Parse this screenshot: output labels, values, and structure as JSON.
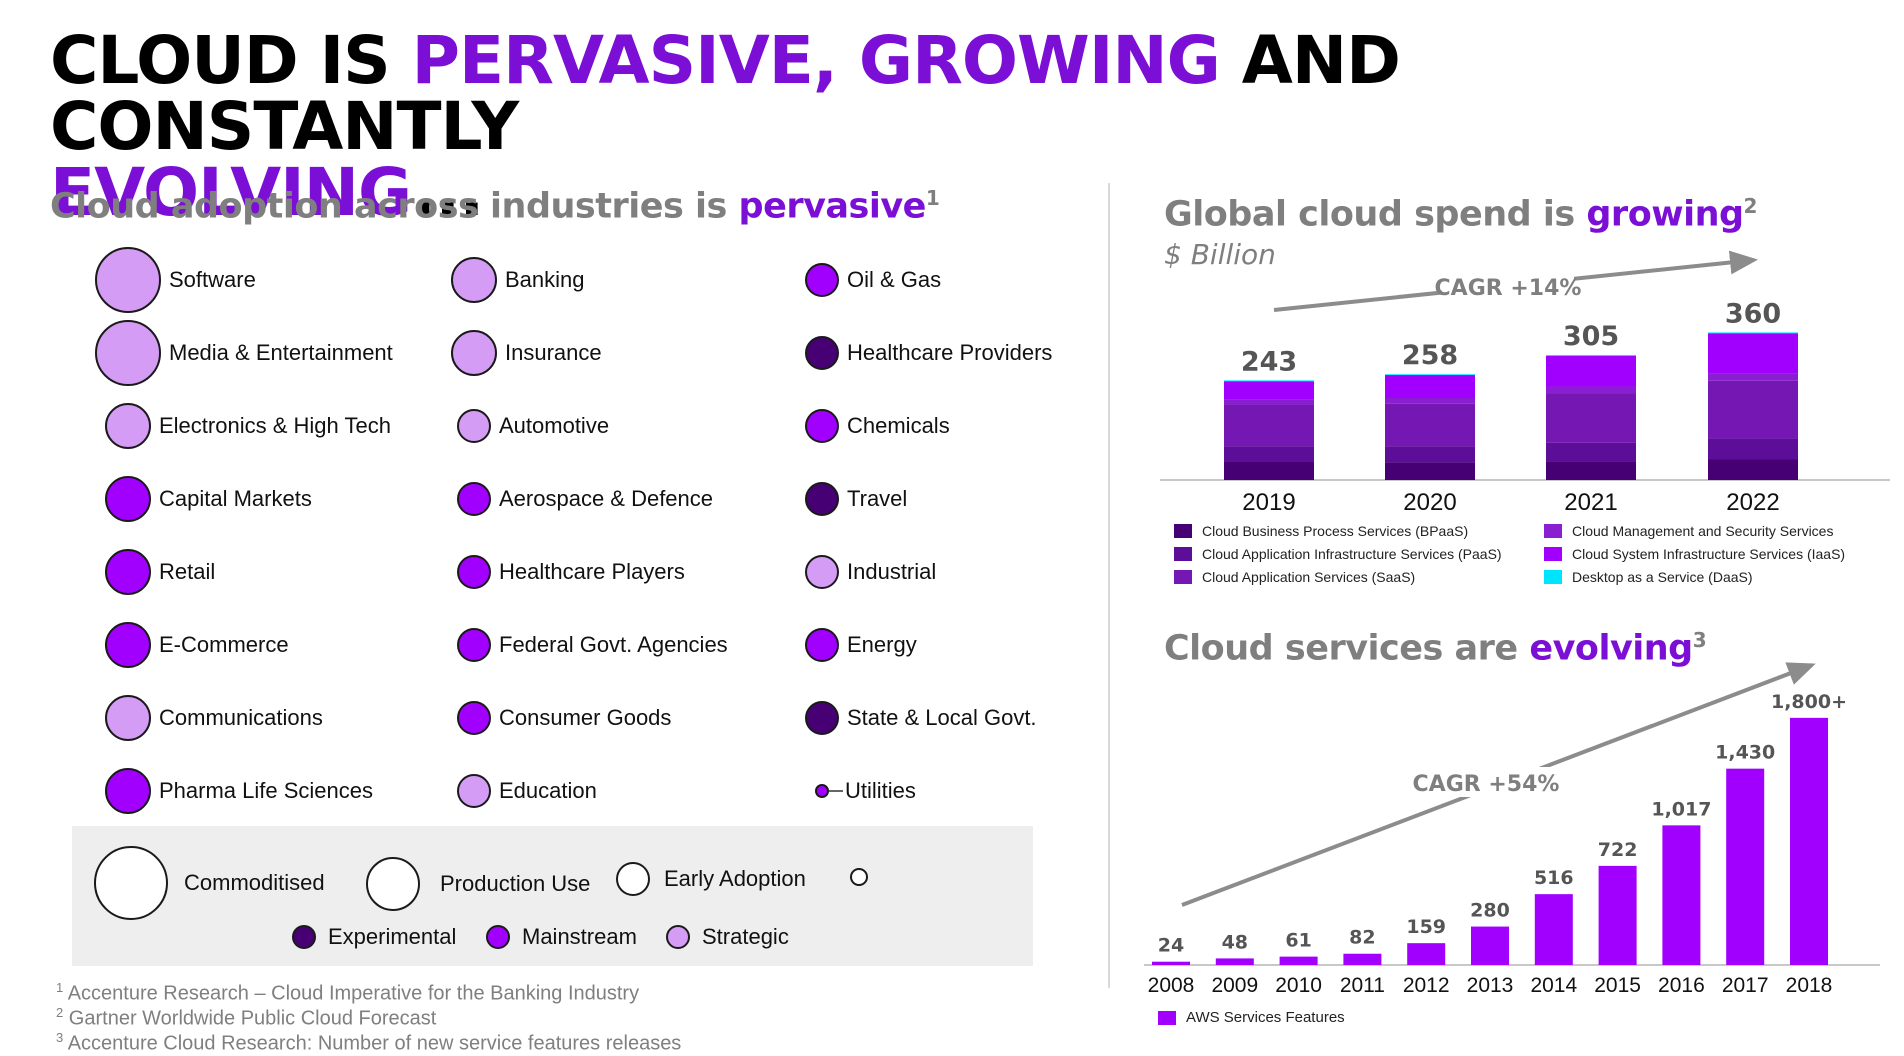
{
  "title": {
    "part1": "CLOUD IS ",
    "part2": "PERVASIVE, GROWING",
    "part3": " AND CONSTANTLY ",
    "part4": "EVOLVING",
    "part5": "..."
  },
  "adoption": {
    "heading_plain": "Cloud adoption across industries is ",
    "heading_accent": "pervasive",
    "heading_note": "1",
    "columns": [
      [
        {
          "label": "Software",
          "level": "commoditised",
          "type": "strategic"
        },
        {
          "label": "Media & Entertainment",
          "level": "commoditised",
          "type": "strategic"
        },
        {
          "label": "Electronics & High Tech",
          "level": "production",
          "type": "strategic"
        },
        {
          "label": "Capital Markets",
          "level": "production",
          "type": "mainstream"
        },
        {
          "label": "Retail",
          "level": "production",
          "type": "mainstream"
        },
        {
          "label": "E-Commerce",
          "level": "production",
          "type": "mainstream"
        },
        {
          "label": "Communications",
          "level": "production",
          "type": "strategic"
        },
        {
          "label": "Pharma Life Sciences",
          "level": "production",
          "type": "mainstream"
        }
      ],
      [
        {
          "label": "Banking",
          "level": "production",
          "type": "strategic"
        },
        {
          "label": "Insurance",
          "level": "production",
          "type": "strategic"
        },
        {
          "label": "Automotive",
          "level": "early",
          "type": "strategic"
        },
        {
          "label": "Aerospace & Defence",
          "level": "early",
          "type": "mainstream"
        },
        {
          "label": "Healthcare Players",
          "level": "early",
          "type": "mainstream"
        },
        {
          "label": "Federal Govt. Agencies",
          "level": "early",
          "type": "mainstream"
        },
        {
          "label": "Consumer Goods",
          "level": "early",
          "type": "mainstream"
        },
        {
          "label": "Education",
          "level": "early",
          "type": "strategic"
        }
      ],
      [
        {
          "label": "Oil & Gas",
          "level": "early",
          "type": "mainstream"
        },
        {
          "label": "Healthcare Providers",
          "level": "early",
          "type": "experimental"
        },
        {
          "label": "Chemicals",
          "level": "early",
          "type": "mainstream"
        },
        {
          "label": "Travel",
          "level": "early",
          "type": "experimental"
        },
        {
          "label": "Industrial",
          "level": "early",
          "type": "strategic"
        },
        {
          "label": "Energy",
          "level": "early",
          "type": "mainstream"
        },
        {
          "label": "State & Local Govt.",
          "level": "early",
          "type": "experimental"
        },
        {
          "label": "Utilities",
          "level": "experimental",
          "type": "mainstream"
        }
      ]
    ],
    "legend": {
      "commoditised": "Commoditised",
      "production": "Production Use",
      "early": "Early Adoption",
      "experimental": "Experimental",
      "mainstream": "Mainstream",
      "strategic": "Strategic"
    },
    "colors": {
      "experimental": "#460073",
      "mainstream": "#a100ff",
      "strategic": "#d59cf5"
    }
  },
  "footnotes": [
    {
      "num": "1",
      "text": "Accenture Research – Cloud Imperative for the Banking Industry"
    },
    {
      "num": "2",
      "text": "Gartner Worldwide Public Cloud Forecast"
    },
    {
      "num": "3",
      "text": "Accenture Cloud Research: Number of new service features releases"
    }
  ],
  "spend": {
    "heading_plain": "Global cloud spend is ",
    "heading_accent": "growing",
    "heading_note": "2",
    "unit": "$ Billion",
    "cagr": "CAGR +14%"
  },
  "evolving": {
    "heading_plain": "Cloud services are ",
    "heading_accent": "evolving",
    "heading_note": "3",
    "cagr": "CAGR +54%"
  },
  "chart_data": [
    {
      "type": "bar",
      "stacked": true,
      "title": "Global cloud spend is growing",
      "ylabel": "$ Billion",
      "categories": [
        "2019",
        "2020",
        "2021",
        "2022"
      ],
      "totals": [
        243,
        258,
        305,
        360
      ],
      "total_labels": [
        "243",
        "258",
        "305",
        "360"
      ],
      "series": [
        {
          "name": "Cloud Business Process Services (BPaaS)",
          "color": "#460073",
          "values": [
            45,
            43,
            46,
            50
          ]
        },
        {
          "name": "Cloud Application Infrastructure Services (PaaS)",
          "color": "#5d0e99",
          "values": [
            37,
            39,
            45,
            51
          ]
        },
        {
          "name": "Cloud Application Services (SaaS)",
          "color": "#7417b3",
          "values": [
            102,
            104,
            121,
            141
          ]
        },
        {
          "name": "Cloud Management and Security Services",
          "color": "#8a1ed1",
          "values": [
            12,
            14,
            16,
            18
          ]
        },
        {
          "name": "Cloud System Infrastructure Services (IaaS)",
          "color": "#a100ff",
          "values": [
            45,
            56,
            75,
            98
          ]
        },
        {
          "name": "Desktop as a Service (DaaS)",
          "color": "#00e5ff",
          "values": [
            2,
            2,
            2,
            2
          ]
        }
      ],
      "annotation": "CAGR +14%"
    },
    {
      "type": "bar",
      "title": "Cloud services are evolving",
      "categories": [
        "2008",
        "2009",
        "2010",
        "2011",
        "2012",
        "2013",
        "2014",
        "2015",
        "2016",
        "2017",
        "2018"
      ],
      "series": [
        {
          "name": "AWS Services Features",
          "color": "#a100ff",
          "values": [
            24,
            48,
            61,
            82,
            159,
            280,
            516,
            722,
            1017,
            1430,
            1800
          ]
        }
      ],
      "value_labels": [
        "24",
        "48",
        "61",
        "82",
        "159",
        "280",
        "516",
        "722",
        "1,017",
        "1,430",
        "1,800+"
      ],
      "annotation": "CAGR +54%"
    }
  ]
}
